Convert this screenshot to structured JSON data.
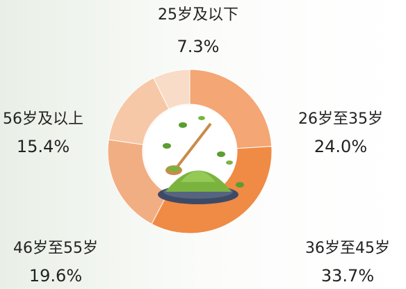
{
  "chart_data": {
    "type": "pie",
    "donut": true,
    "categories": [
      "25岁及以下",
      "26岁至35岁",
      "36岁至45岁",
      "46岁至55岁",
      "56岁及以上"
    ],
    "values": [
      7.3,
      24.0,
      33.7,
      19.6,
      15.4
    ],
    "value_labels": [
      "7.3%",
      "24.0%",
      "33.7%",
      "19.6%",
      "15.4%"
    ],
    "colors": [
      "#f8dcc8",
      "#f4a674",
      "#ef8b45",
      "#f2ae83",
      "#f6c8a7"
    ]
  }
}
